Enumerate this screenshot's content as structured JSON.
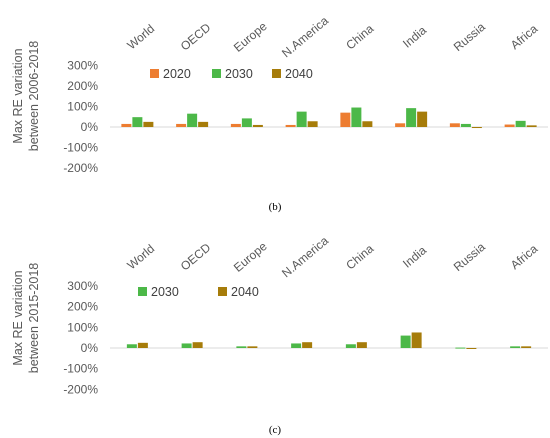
{
  "chart_data": [
    {
      "type": "bar",
      "panel_label": "(b)",
      "ylabel_lines": [
        "Max RE variation",
        "between 2006-2018"
      ],
      "categories": [
        "World",
        "OECD",
        "Europe",
        "N.America",
        "China",
        "India",
        "Russia",
        "Africa"
      ],
      "yticks": [
        "300%",
        "200%",
        "100%",
        "0%",
        "-100%",
        "-200%"
      ],
      "ylim": [
        -200,
        300
      ],
      "grid": false,
      "legend_position": "top-left",
      "series": [
        {
          "name": "2020",
          "color": "#ED7D31",
          "values": [
            15,
            15,
            15,
            10,
            70,
            18,
            18,
            12
          ]
        },
        {
          "name": "2030",
          "color": "#4CB848",
          "values": [
            48,
            65,
            42,
            75,
            95,
            92,
            15,
            30
          ]
        },
        {
          "name": "2040",
          "color": "#A67C0A",
          "values": [
            25,
            25,
            10,
            28,
            28,
            75,
            -5,
            8
          ]
        }
      ]
    },
    {
      "type": "bar",
      "panel_label": "(c)",
      "ylabel_lines": [
        "Max RE variation",
        "between 2015-2018"
      ],
      "categories": [
        "World",
        "OECD",
        "Europe",
        "N.America",
        "China",
        "India",
        "Russia",
        "Africa"
      ],
      "yticks": [
        "300%",
        "200%",
        "100%",
        "0%",
        "-100%",
        "-200%"
      ],
      "ylim": [
        -200,
        300
      ],
      "grid": false,
      "legend_position": "top-left",
      "series": [
        {
          "name": "2030",
          "color": "#4CB848",
          "values": [
            18,
            22,
            8,
            22,
            18,
            60,
            2,
            8
          ]
        },
        {
          "name": "2040",
          "color": "#A67C0A",
          "values": [
            25,
            28,
            8,
            28,
            28,
            75,
            -3,
            8
          ]
        }
      ]
    }
  ]
}
